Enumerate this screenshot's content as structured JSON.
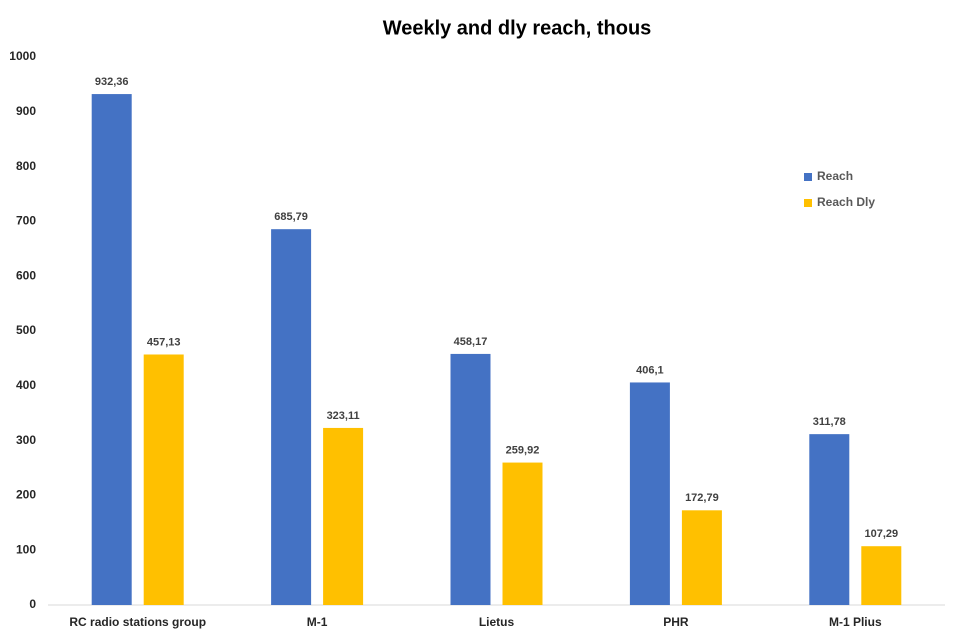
{
  "chart_data": {
    "type": "bar",
    "title": "Weekly and dly reach, thous",
    "categories": [
      "RC radio stations group",
      "M-1",
      "Lietus",
      "PHR",
      "M-1 Plius"
    ],
    "series": [
      {
        "name": "Reach",
        "color": "#4472c4",
        "values": [
          932.36,
          685.79,
          458.17,
          406.1,
          311.78
        ],
        "value_labels": [
          "932,36",
          "685,79",
          "458,17",
          "406,1",
          "311,78"
        ]
      },
      {
        "name": "Reach Dly",
        "color": "#ffc000",
        "values": [
          457.13,
          323.11,
          259.92,
          172.79,
          107.29
        ],
        "value_labels": [
          "457,13",
          "323,11",
          "259,92",
          "172,79",
          "107,29"
        ]
      }
    ],
    "ylim": [
      0,
      1000
    ],
    "yticks": [
      0,
      100,
      200,
      300,
      400,
      500,
      600,
      700,
      800,
      900,
      1000
    ],
    "grid": false,
    "legend": "right"
  }
}
